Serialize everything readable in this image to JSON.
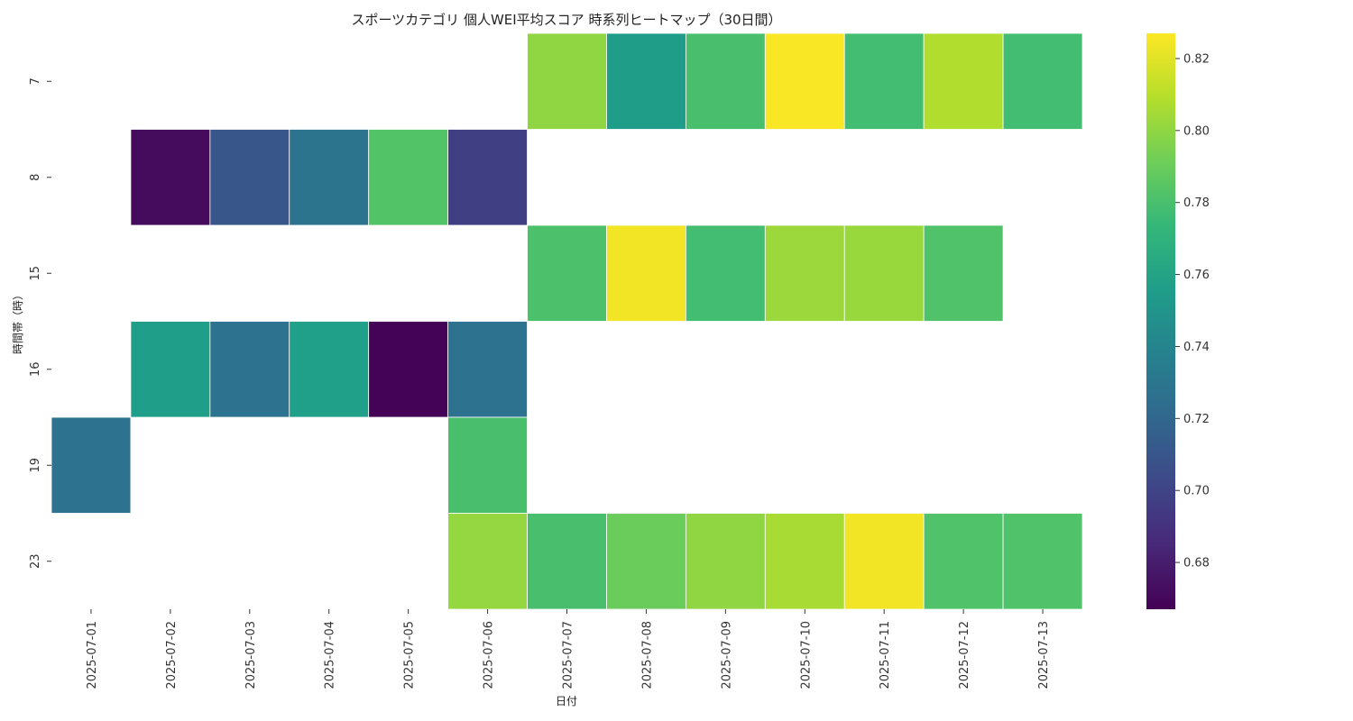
{
  "chart_data": {
    "type": "heatmap",
    "title": "スポーツカテゴリ 個人WEI平均スコア 時系列ヒートマップ（30日間）",
    "xlabel": "日付",
    "ylabel": "時間帯（時）",
    "x": [
      "2025-07-01",
      "2025-07-02",
      "2025-07-03",
      "2025-07-04",
      "2025-07-05",
      "2025-07-06",
      "2025-07-07",
      "2025-07-08",
      "2025-07-09",
      "2025-07-10",
      "2025-07-11",
      "2025-07-12",
      "2025-07-13"
    ],
    "y": [
      "7",
      "8",
      "15",
      "16",
      "19",
      "23"
    ],
    "values": [
      [
        null,
        null,
        null,
        null,
        null,
        null,
        0.8,
        0.755,
        0.78,
        0.826,
        0.778,
        0.808,
        0.778
      ],
      [
        null,
        0.672,
        0.71,
        0.728,
        0.783,
        0.697,
        null,
        null,
        null,
        null,
        null,
        null,
        null
      ],
      [
        null,
        null,
        null,
        null,
        null,
        null,
        0.781,
        0.824,
        0.778,
        0.803,
        0.802,
        0.782,
        null
      ],
      [
        null,
        0.756,
        0.727,
        0.757,
        0.668,
        0.727,
        null,
        null,
        null,
        null,
        null,
        null,
        null
      ],
      [
        0.727,
        null,
        null,
        null,
        null,
        0.78,
        null,
        null,
        null,
        null,
        null,
        null,
        null
      ],
      [
        null,
        null,
        null,
        null,
        null,
        0.801,
        0.78,
        0.79,
        0.8,
        0.806,
        0.824,
        0.782,
        0.782
      ]
    ],
    "colorscale": "viridis",
    "colorbar": {
      "min": 0.667,
      "max": 0.827,
      "ticks": [
        0.68,
        0.7,
        0.72,
        0.74,
        0.76,
        0.78,
        0.8,
        0.82
      ]
    },
    "grid": false
  }
}
